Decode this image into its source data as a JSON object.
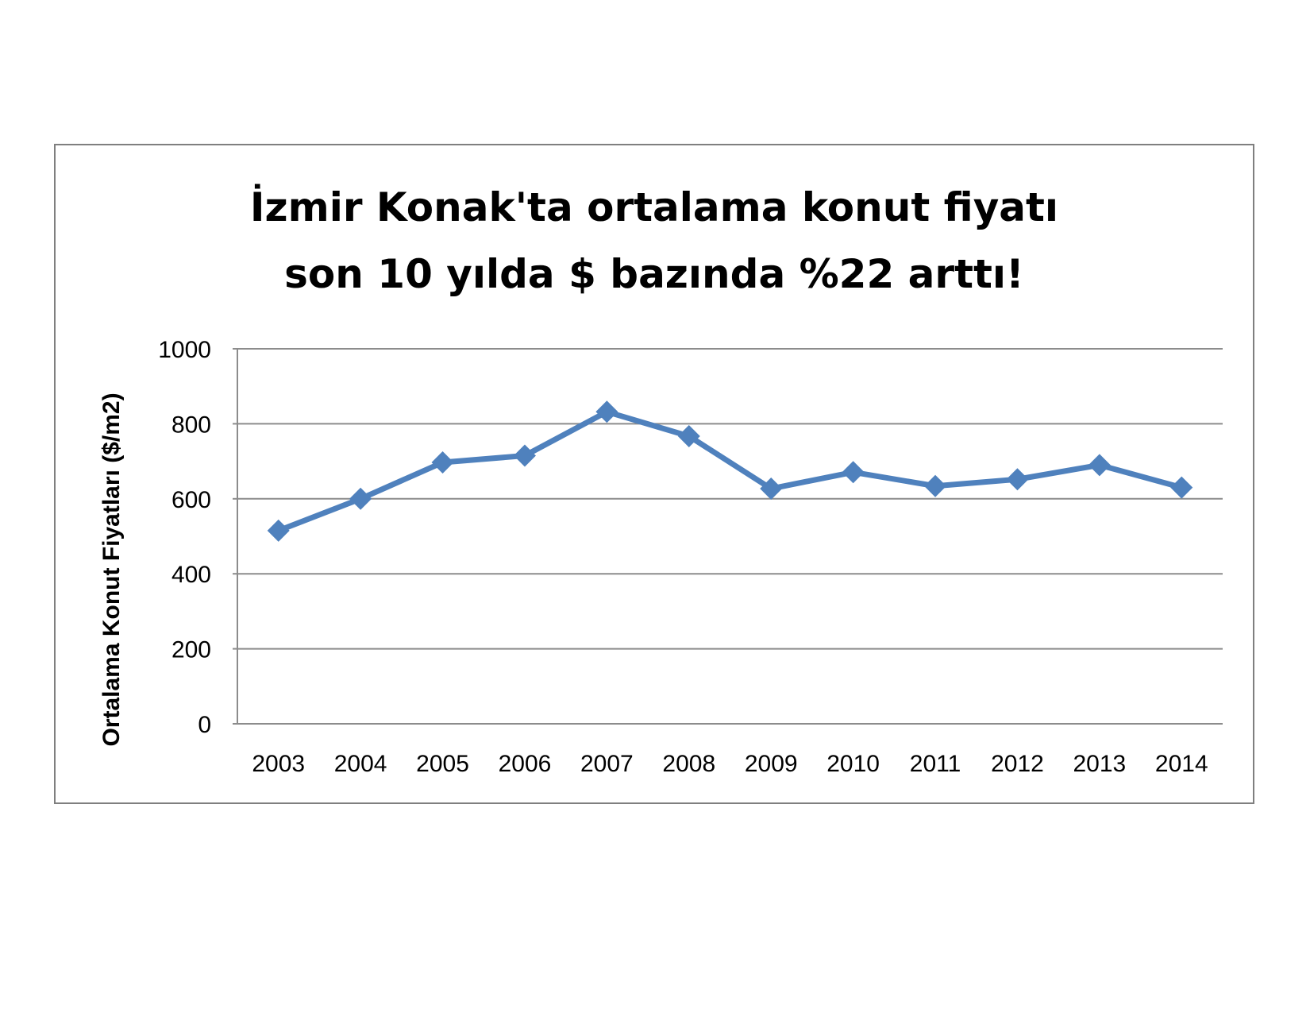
{
  "chart_data": {
    "type": "line",
    "title_lines": [
      "İzmir Konak'ta ortalama konut fiyatı",
      "son 10 yılda $ bazında %22 arttı!"
    ],
    "xlabel": "",
    "ylabel": "Ortalama Konut Fiyatları ($/m2)",
    "categories": [
      "2003",
      "2004",
      "2005",
      "2006",
      "2007",
      "2008",
      "2009",
      "2010",
      "2011",
      "2012",
      "2013",
      "2014"
    ],
    "series": [
      {
        "values": [
          515,
          600,
          697,
          715,
          832,
          767,
          627,
          671,
          634,
          652,
          690,
          630
        ],
        "color": "#4f81bd",
        "marker": "diamond"
      }
    ],
    "yticks": [
      0,
      200,
      400,
      600,
      800,
      1000
    ],
    "ylim": [
      0,
      1000
    ],
    "grid": true,
    "legend": "none"
  }
}
